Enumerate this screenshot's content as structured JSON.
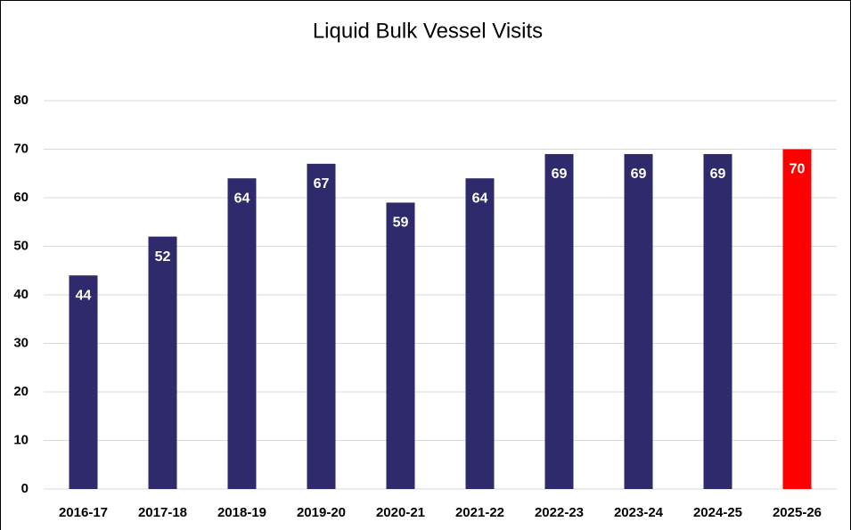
{
  "chart_data": {
    "type": "bar",
    "title": "Liquid Bulk Vessel Visits",
    "categories": [
      "2016-17",
      "2017-18",
      "2018-19",
      "2019-20",
      "2020-21",
      "2021-22",
      "2022-23",
      "2023-24",
      "2024-25",
      "2025-26"
    ],
    "values": [
      44,
      52,
      64,
      67,
      59,
      64,
      69,
      69,
      69,
      70
    ],
    "colors": [
      "#2e2a6b",
      "#2e2a6b",
      "#2e2a6b",
      "#2e2a6b",
      "#2e2a6b",
      "#2e2a6b",
      "#2e2a6b",
      "#2e2a6b",
      "#2e2a6b",
      "#ff0000"
    ],
    "ylim": [
      0,
      80
    ],
    "yticks": [
      0,
      10,
      20,
      30,
      40,
      50,
      60,
      70,
      80
    ],
    "grid": true
  }
}
